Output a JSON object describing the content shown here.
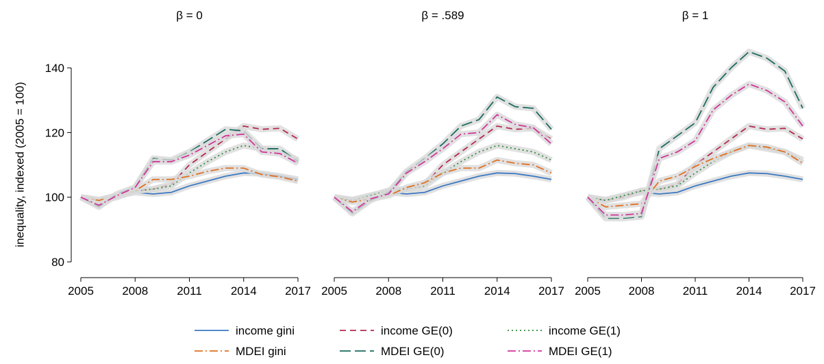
{
  "chart_data": [
    {
      "type": "line",
      "title": "β = 0",
      "ylabel": "inequality, indexed (2005 = 100)",
      "x": [
        2005,
        2006,
        2007,
        2008,
        2009,
        2010,
        2011,
        2012,
        2013,
        2014,
        2015,
        2016,
        2017
      ],
      "xlim": [
        2005,
        2017
      ],
      "xticks": [
        2005,
        2008,
        2011,
        2014,
        2017
      ],
      "ylim": [
        75,
        147
      ],
      "yticks": [
        80,
        100,
        120,
        140
      ],
      "series": [
        {
          "name": "income gini",
          "color": "#3a78c2",
          "linestyle": "solid",
          "values": [
            100,
            99.2,
            100.5,
            101.5,
            101,
            101.5,
            103.5,
            105,
            106.5,
            107.5,
            107.3,
            106.5,
            105.5
          ]
        },
        {
          "name": "income GE(0)",
          "color": "#b5284f",
          "linestyle": "dash",
          "values": [
            100,
            99,
            100,
            102,
            102.5,
            104,
            110,
            114,
            118,
            122,
            121,
            121.3,
            118
          ]
        },
        {
          "name": "income GE(1)",
          "color": "#2e8b3a",
          "linestyle": "dot",
          "values": [
            100,
            99,
            100.5,
            102,
            102.5,
            103.5,
            107.5,
            111,
            114,
            116,
            115,
            114,
            111.5
          ]
        },
        {
          "name": "MDEI gini",
          "color": "#e07020",
          "linestyle": "dashdot",
          "values": [
            100,
            99,
            100.5,
            102,
            105.5,
            105.5,
            106.5,
            108,
            109,
            109,
            107,
            106.3,
            105
          ]
        },
        {
          "name": "MDEI GE(0)",
          "color": "#1a6b5f",
          "linestyle": "longdash",
          "values": [
            100,
            97,
            101,
            103,
            112,
            111.5,
            114,
            117.5,
            121,
            120.5,
            115,
            115,
            111
          ]
        },
        {
          "name": "MDEI GE(1)",
          "color": "#d1359a",
          "linestyle": "dashdot",
          "values": [
            100,
            97.5,
            100.5,
            103,
            111,
            111,
            113,
            116,
            119,
            119.5,
            114,
            113.5,
            110.5
          ]
        }
      ]
    },
    {
      "type": "line",
      "title": "β = .589",
      "x": [
        2005,
        2006,
        2007,
        2008,
        2009,
        2010,
        2011,
        2012,
        2013,
        2014,
        2015,
        2016,
        2017
      ],
      "xlim": [
        2005,
        2017
      ],
      "xticks": [
        2005,
        2008,
        2011,
        2014,
        2017
      ],
      "ylim": [
        75,
        147
      ],
      "series": [
        {
          "color": "#3a78c2",
          "linestyle": "solid",
          "values": [
            100,
            99.2,
            100.5,
            101.5,
            101,
            101.5,
            103.5,
            105,
            106.5,
            107.5,
            107.3,
            106.5,
            105.5
          ]
        },
        {
          "color": "#b5284f",
          "linestyle": "dash",
          "values": [
            100,
            99,
            100,
            102,
            102.5,
            104,
            110,
            114,
            118,
            122,
            121,
            121.3,
            118
          ]
        },
        {
          "color": "#2e8b3a",
          "linestyle": "dot",
          "values": [
            100,
            99,
            100.5,
            102,
            102.5,
            103.5,
            107.5,
            111,
            114,
            116,
            115,
            114,
            111.5
          ]
        },
        {
          "color": "#e07020",
          "linestyle": "dashdot",
          "values": [
            100,
            98.5,
            99.5,
            100.5,
            103,
            104.5,
            107.5,
            109,
            109,
            111.5,
            110.5,
            110,
            107.5
          ]
        },
        {
          "color": "#1a6b5f",
          "linestyle": "longdash",
          "values": [
            100,
            95,
            99,
            101.5,
            108,
            112,
            116.5,
            122,
            124,
            131,
            128,
            127.5,
            121
          ]
        },
        {
          "color": "#d1359a",
          "linestyle": "dashdot",
          "values": [
            100,
            95.5,
            99.5,
            101,
            107.5,
            111,
            115,
            119.5,
            120,
            125.5,
            122.5,
            121.5,
            116.5
          ]
        }
      ]
    },
    {
      "type": "line",
      "title": "β = 1",
      "x": [
        2005,
        2006,
        2007,
        2008,
        2009,
        2010,
        2011,
        2012,
        2013,
        2014,
        2015,
        2016,
        2017
      ],
      "xlim": [
        2005,
        2017
      ],
      "xticks": [
        2005,
        2008,
        2011,
        2014,
        2017
      ],
      "ylim": [
        75,
        147
      ],
      "series": [
        {
          "color": "#3a78c2",
          "linestyle": "solid",
          "values": [
            100,
            99.2,
            100.5,
            101.5,
            101,
            101.5,
            103.5,
            105,
            106.5,
            107.5,
            107.3,
            106.5,
            105.5
          ]
        },
        {
          "color": "#b5284f",
          "linestyle": "dash",
          "values": [
            100,
            99,
            100,
            102,
            102.5,
            104,
            110,
            114,
            118,
            122,
            121,
            121.3,
            118
          ]
        },
        {
          "color": "#2e8b3a",
          "linestyle": "dot",
          "values": [
            100,
            99,
            100.5,
            102,
            102.5,
            103.5,
            107.5,
            111,
            114,
            116,
            115,
            114,
            111.5
          ]
        },
        {
          "color": "#e07020",
          "linestyle": "dashdot",
          "values": [
            100,
            97,
            97.5,
            98,
            105,
            106.5,
            109.5,
            112,
            114,
            116,
            115.5,
            114,
            110.5
          ]
        },
        {
          "color": "#1a6b5f",
          "linestyle": "longdash",
          "values": [
            100,
            93.5,
            93.5,
            94,
            115,
            119,
            123,
            134,
            140,
            145,
            143,
            139,
            127.5
          ]
        },
        {
          "color": "#d1359a",
          "linestyle": "dashdot",
          "values": [
            100,
            94.5,
            94.5,
            95,
            112,
            114,
            117.5,
            127,
            131.5,
            135,
            133,
            129.5,
            122
          ]
        }
      ]
    }
  ]
}
